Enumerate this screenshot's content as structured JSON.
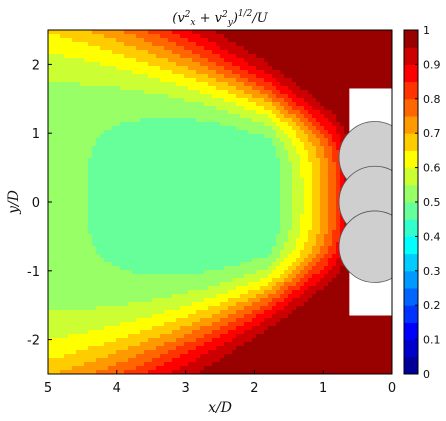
{
  "chart_data": {
    "type": "heatmap",
    "title": "(v_x^2 + v_y^2)^{1/2}/U",
    "title_parts": {
      "main": "(v",
      "sx": "x",
      "plus": " + v",
      "sy": "y",
      "close": ")",
      "exp": "1/2",
      "tail": "/U",
      "sq": "2"
    },
    "xlabel": "x/D",
    "ylabel": "y/D",
    "xlim": [
      5,
      0
    ],
    "ylim": [
      -2.5,
      2.5
    ],
    "xticks": [
      "5",
      "4",
      "3",
      "2",
      "1",
      "0"
    ],
    "yticks": [
      "2",
      "1",
      "0",
      "-1",
      "-2"
    ],
    "colorbar": {
      "range": [
        0,
        1
      ],
      "ticks": [
        "0",
        "0.1",
        "0.2",
        "0.3",
        "0.4",
        "0.5",
        "0.6",
        "0.7",
        "0.8",
        "0.9",
        "1"
      ],
      "colormap": "jet",
      "levels": 20
    },
    "field_summary": {
      "background_value": 1.0,
      "wake_core_min": 0.45,
      "wake_core_center_x": 3.0,
      "wake_core_center_y": 0.2
    },
    "obstacles": [
      {
        "shape": "circle",
        "cx": 0.25,
        "cy": 0.65,
        "r": 0.52,
        "color": "#cfcfcf"
      },
      {
        "shape": "circle",
        "cx": 0.25,
        "cy": 0.0,
        "r": 0.52,
        "color": "#cfcfcf"
      },
      {
        "shape": "circle",
        "cx": 0.25,
        "cy": -0.65,
        "r": 0.52,
        "color": "#cfcfcf"
      }
    ]
  }
}
